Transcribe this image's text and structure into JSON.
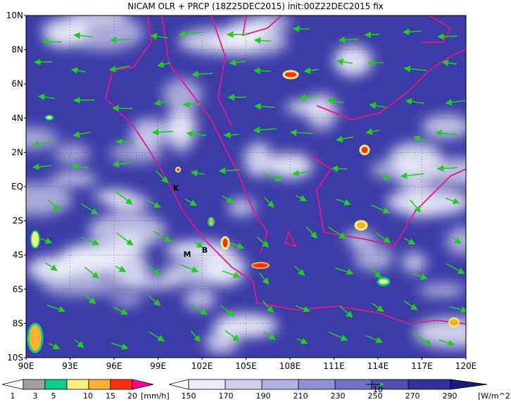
{
  "title": "NICAM OLR + PRCP (18Z25DEC2015) init:00Z22DEC2015 fix",
  "lat_labels": [
    "10N",
    "8N",
    "6N",
    "4N",
    "2N",
    "EQ",
    "2S",
    "4S",
    "6S",
    "8S",
    "10S"
  ],
  "lon_labels": [
    "90E",
    "93E",
    "96E",
    "99E",
    "102E",
    "105E",
    "108E",
    "111E",
    "114E",
    "117E",
    "120E"
  ],
  "markers": [
    "K",
    "M",
    "B"
  ],
  "precip_legend": {
    "labels": [
      "1",
      "3",
      "5",
      "10",
      "15",
      "20"
    ],
    "unit": "[mm/h]"
  },
  "olr_legend": {
    "labels": [
      "150",
      "170",
      "190",
      "210",
      "230",
      "250",
      "270",
      "290"
    ],
    "unit": "[W/m^2]"
  },
  "vector_label": "10"
}
